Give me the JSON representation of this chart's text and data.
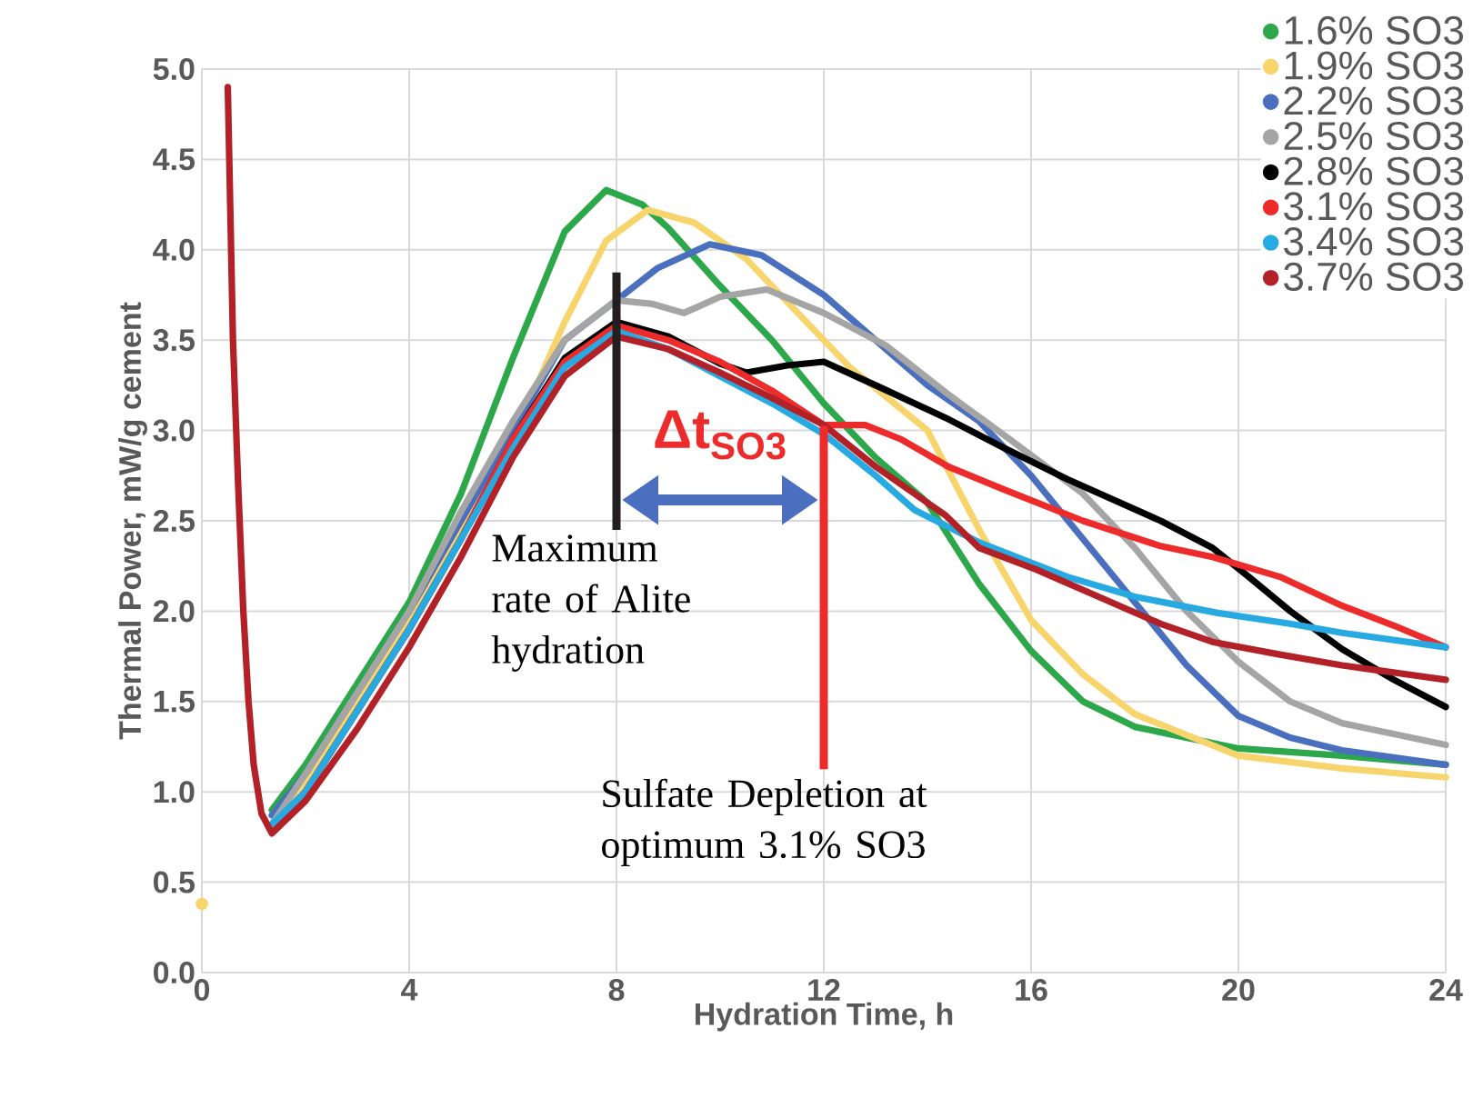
{
  "chart_data": {
    "type": "line",
    "xlabel": "Hydration Time, h",
    "ylabel": "Thermal Power, mW/g cement",
    "xlim": [
      0,
      24
    ],
    "ylim": [
      0,
      5
    ],
    "xticks": [
      0,
      4,
      8,
      12,
      16,
      20,
      24
    ],
    "yticks": [
      {
        "value": 0,
        "label": "0.0"
      },
      {
        "value": 0.5,
        "label": "0.5"
      },
      {
        "value": 1,
        "label": "1.0"
      },
      {
        "value": 1.5,
        "label": "1.5"
      },
      {
        "value": 2,
        "label": "2.0"
      },
      {
        "value": 2.5,
        "label": "2.5"
      },
      {
        "value": 3,
        "label": "3.0"
      },
      {
        "value": 3.5,
        "label": "3.5"
      },
      {
        "value": 4,
        "label": "4.0"
      },
      {
        "value": 4.5,
        "label": "4.5"
      },
      {
        "value": 5,
        "label": "5.0"
      }
    ],
    "grid": true,
    "legend": "top right",
    "marker": "none",
    "line_style": "solid",
    "series": [
      {
        "name": "1.6% SO3",
        "color": "#2ca84a",
        "x": [
          1.35,
          2,
          3,
          4,
          5,
          6,
          7,
          7.8,
          8.5,
          9,
          10,
          11,
          12,
          13,
          14,
          15,
          16,
          17,
          18,
          20,
          22,
          24
        ],
        "values": [
          0.9,
          1.15,
          1.6,
          2.05,
          2.65,
          3.4,
          4.1,
          4.33,
          4.25,
          4.12,
          3.8,
          3.5,
          3.15,
          2.85,
          2.6,
          2.15,
          1.78,
          1.5,
          1.36,
          1.24,
          1.2,
          1.15
        ]
      },
      {
        "name": "1.9% SO3",
        "color": "#f8d46c",
        "x": [
          1.35,
          2,
          3,
          4,
          5,
          6,
          7,
          7.8,
          8.6,
          9.5,
          10.5,
          11.5,
          12.5,
          14,
          15,
          16,
          17,
          18,
          20,
          22,
          24
        ],
        "values": [
          0.82,
          1.05,
          1.5,
          1.95,
          2.45,
          2.95,
          3.6,
          4.05,
          4.22,
          4.15,
          3.95,
          3.65,
          3.35,
          3.0,
          2.45,
          1.95,
          1.65,
          1.43,
          1.2,
          1.13,
          1.08
        ]
      },
      {
        "name": "2.2% SO3",
        "color": "#4a6fbf",
        "x": [
          1.35,
          2,
          3,
          4,
          5,
          6,
          7,
          8,
          8.8,
          9.8,
          10.8,
          12,
          13,
          14,
          15,
          16,
          17,
          18,
          19,
          20,
          21,
          22,
          24
        ],
        "values": [
          0.87,
          1.1,
          1.55,
          2.0,
          2.5,
          3.0,
          3.5,
          3.72,
          3.9,
          4.03,
          3.97,
          3.75,
          3.5,
          3.25,
          3.05,
          2.75,
          2.4,
          2.05,
          1.7,
          1.42,
          1.3,
          1.23,
          1.15
        ]
      },
      {
        "name": "2.5% SO3",
        "color": "#a5a5a5",
        "x": [
          1.35,
          2,
          3,
          4,
          5,
          6,
          7,
          8,
          8.7,
          9.3,
          10,
          10.9,
          12,
          13.2,
          14.4,
          15.5,
          17,
          18,
          19,
          20,
          21,
          22,
          24
        ],
        "values": [
          0.82,
          1.1,
          1.55,
          2.0,
          2.55,
          3.05,
          3.5,
          3.72,
          3.7,
          3.65,
          3.74,
          3.78,
          3.65,
          3.47,
          3.2,
          2.97,
          2.65,
          2.35,
          2.0,
          1.72,
          1.5,
          1.38,
          1.26
        ]
      },
      {
        "name": "2.8% SO3",
        "color": "#000000",
        "x": [
          1.35,
          2,
          3,
          4,
          5,
          6,
          7,
          8,
          9,
          10,
          10.5,
          11.3,
          12,
          13,
          14.35,
          15.5,
          16.7,
          18.5,
          19.5,
          20.2,
          21,
          22,
          23,
          24
        ],
        "values": [
          0.78,
          1.0,
          1.45,
          1.9,
          2.4,
          2.95,
          3.4,
          3.6,
          3.52,
          3.37,
          3.32,
          3.36,
          3.38,
          3.25,
          3.07,
          2.9,
          2.73,
          2.5,
          2.35,
          2.19,
          2.0,
          1.79,
          1.62,
          1.47
        ]
      },
      {
        "name": "3.1% SO3",
        "color": "#ee2b2b",
        "x": [
          1.35,
          2,
          3,
          4,
          5,
          6,
          7,
          8,
          9,
          10,
          11,
          12,
          12.8,
          13.5,
          14.4,
          15.5,
          17,
          18.5,
          19.5,
          20.8,
          22,
          23,
          24
        ],
        "values": [
          0.8,
          1.0,
          1.45,
          1.9,
          2.4,
          2.95,
          3.38,
          3.58,
          3.5,
          3.38,
          3.22,
          3.03,
          3.03,
          2.95,
          2.8,
          2.67,
          2.5,
          2.36,
          2.3,
          2.19,
          2.03,
          1.92,
          1.8
        ]
      },
      {
        "name": "3.4% SO3",
        "color": "#27a9e1",
        "x": [
          1.35,
          2,
          3,
          4,
          5,
          6,
          7,
          8,
          9,
          10,
          11,
          12,
          13,
          13.75,
          15,
          16.7,
          18,
          19.6,
          21,
          22,
          24
        ],
        "values": [
          0.82,
          1.0,
          1.45,
          1.9,
          2.4,
          2.9,
          3.35,
          3.55,
          3.45,
          3.3,
          3.15,
          2.98,
          2.75,
          2.56,
          2.38,
          2.19,
          2.08,
          1.99,
          1.93,
          1.88,
          1.8
        ]
      },
      {
        "name": "3.7% SO3",
        "color": "#b22028",
        "x": [
          0.5,
          0.55,
          0.6,
          0.7,
          0.8,
          0.9,
          1.0,
          1.15,
          1.35,
          2,
          3,
          4,
          5,
          6,
          7,
          8,
          9,
          10,
          11,
          12,
          13,
          14.35,
          15,
          16.1,
          17.3,
          18.5,
          19.5,
          20.8,
          22,
          24
        ],
        "values": [
          4.9,
          4.2,
          3.5,
          2.7,
          2.0,
          1.5,
          1.15,
          0.88,
          0.77,
          0.95,
          1.35,
          1.8,
          2.3,
          2.85,
          3.3,
          3.52,
          3.45,
          3.32,
          3.18,
          3.03,
          2.8,
          2.53,
          2.35,
          2.23,
          2.08,
          1.93,
          1.83,
          1.76,
          1.7,
          1.62
        ]
      },
      {
        "type": "scatter",
        "marker": "circle",
        "color": "#f8d46c",
        "x": [
          0
        ],
        "values": [
          0.38
        ]
      }
    ],
    "ref_lines": [
      {
        "axis": "x",
        "value": 8,
        "label": "Maximum rate of Alite hydration",
        "color": "#231f20"
      },
      {
        "axis": "x",
        "value": 12,
        "label": "Sulfate Depletion at optimum 3.1% SO3",
        "color": "#ee2b2b"
      }
    ],
    "annotations": [
      "Δt$_{SO3}$"
    ]
  }
}
